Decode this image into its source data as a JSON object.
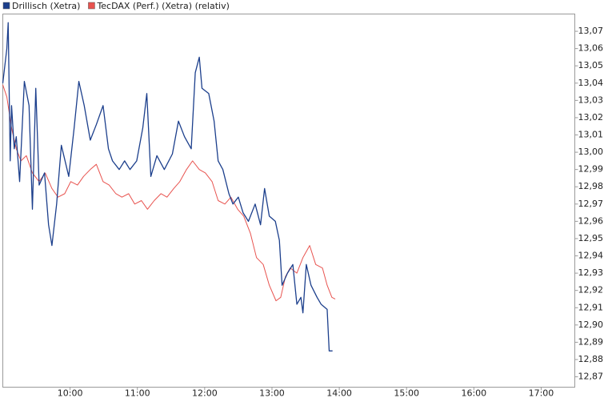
{
  "chart_data": {
    "type": "line",
    "xlim": [
      9,
      17.5
    ],
    "xticks": [
      {
        "value": 10,
        "label": "10:00"
      },
      {
        "value": 11,
        "label": "11:00"
      },
      {
        "value": 12,
        "label": "12:00"
      },
      {
        "value": 13,
        "label": "13:00"
      },
      {
        "value": 14,
        "label": "14:00"
      },
      {
        "value": 15,
        "label": "15:00"
      },
      {
        "value": 16,
        "label": "16:00"
      },
      {
        "value": 17,
        "label": "17:00"
      }
    ],
    "ylim": [
      12.864,
      13.08
    ],
    "yticks": [
      {
        "value": 12.87,
        "label": "12,87"
      },
      {
        "value": 12.88,
        "label": "12,88"
      },
      {
        "value": 12.89,
        "label": "12,89"
      },
      {
        "value": 12.9,
        "label": "12,90"
      },
      {
        "value": 12.91,
        "label": "12,91"
      },
      {
        "value": 12.92,
        "label": "12,92"
      },
      {
        "value": 12.93,
        "label": "12,93"
      },
      {
        "value": 12.94,
        "label": "12,94"
      },
      {
        "value": 12.95,
        "label": "12,95"
      },
      {
        "value": 12.96,
        "label": "12,96"
      },
      {
        "value": 12.97,
        "label": "12,97"
      },
      {
        "value": 12.98,
        "label": "12,98"
      },
      {
        "value": 12.99,
        "label": "12,99"
      },
      {
        "value": 13.0,
        "label": "13,00"
      },
      {
        "value": 13.01,
        "label": "13,01"
      },
      {
        "value": 13.02,
        "label": "13,02"
      },
      {
        "value": 13.03,
        "label": "13,03"
      },
      {
        "value": 13.04,
        "label": "13,04"
      },
      {
        "value": 13.05,
        "label": "13,05"
      },
      {
        "value": 13.06,
        "label": "13,06"
      },
      {
        "value": 13.07,
        "label": "13,07"
      }
    ],
    "grid": false,
    "series": [
      {
        "name": "Drillisch (Xetra)",
        "color": "#1c3f8c",
        "x": [
          9.0,
          9.06,
          9.08,
          9.11,
          9.13,
          9.17,
          9.2,
          9.25,
          9.32,
          9.39,
          9.44,
          9.49,
          9.54,
          9.62,
          9.68,
          9.73,
          9.8,
          9.87,
          9.98,
          10.06,
          10.13,
          10.21,
          10.3,
          10.39,
          10.49,
          10.57,
          10.63,
          10.73,
          10.81,
          10.89,
          10.99,
          11.08,
          11.14,
          11.2,
          11.29,
          11.4,
          11.52,
          11.61,
          11.7,
          11.8,
          11.86,
          11.92,
          11.96,
          12.06,
          12.14,
          12.2,
          12.27,
          12.36,
          12.42,
          12.5,
          12.57,
          12.65,
          12.75,
          12.83,
          12.89,
          12.96,
          13.05,
          13.11,
          13.15,
          13.23,
          13.31,
          13.37,
          13.43,
          13.46,
          13.51,
          13.58,
          13.67,
          13.73,
          13.82,
          13.85,
          13.9
        ],
        "values": [
          13.04,
          13.06,
          13.075,
          12.995,
          13.027,
          13.002,
          13.009,
          12.983,
          13.041,
          13.027,
          12.967,
          13.037,
          12.981,
          12.988,
          12.958,
          12.946,
          12.97,
          13.004,
          12.986,
          13.014,
          13.041,
          13.027,
          13.007,
          13.016,
          13.027,
          13.002,
          12.995,
          12.99,
          12.995,
          12.99,
          12.995,
          13.014,
          13.034,
          12.986,
          12.998,
          12.99,
          12.999,
          13.018,
          13.009,
          13.002,
          13.046,
          13.055,
          13.037,
          13.034,
          13.018,
          12.995,
          12.99,
          12.976,
          12.97,
          12.974,
          12.965,
          12.96,
          12.97,
          12.958,
          12.979,
          12.963,
          12.96,
          12.949,
          12.923,
          12.93,
          12.935,
          12.912,
          12.916,
          12.907,
          12.935,
          12.923,
          12.916,
          12.912,
          12.909,
          12.885,
          12.885
        ]
      },
      {
        "name": "TecDAX (Perf.) (Xetra) (relativ)",
        "color": "#e8534f",
        "x": [
          9.0,
          9.06,
          9.13,
          9.2,
          9.27,
          9.35,
          9.44,
          9.54,
          9.63,
          9.73,
          9.82,
          9.92,
          10.01,
          10.11,
          10.2,
          10.3,
          10.39,
          10.49,
          10.58,
          10.68,
          10.77,
          10.87,
          10.96,
          11.06,
          11.15,
          11.25,
          11.35,
          11.44,
          11.54,
          11.63,
          11.73,
          11.82,
          11.92,
          12.01,
          12.11,
          12.2,
          12.3,
          12.39,
          12.49,
          12.58,
          12.68,
          12.77,
          12.87,
          12.96,
          13.06,
          13.13,
          13.2,
          13.27,
          13.37,
          13.46,
          13.56,
          13.65,
          13.75,
          13.82,
          13.89,
          13.94
        ],
        "values": [
          13.039,
          13.032,
          13.014,
          13.002,
          12.995,
          12.998,
          12.988,
          12.983,
          12.988,
          12.979,
          12.974,
          12.976,
          12.983,
          12.981,
          12.986,
          12.99,
          12.993,
          12.983,
          12.981,
          12.976,
          12.974,
          12.976,
          12.97,
          12.972,
          12.967,
          12.972,
          12.976,
          12.974,
          12.979,
          12.983,
          12.99,
          12.995,
          12.99,
          12.988,
          12.983,
          12.972,
          12.97,
          12.974,
          12.967,
          12.963,
          12.953,
          12.939,
          12.935,
          12.923,
          12.914,
          12.916,
          12.928,
          12.933,
          12.93,
          12.939,
          12.946,
          12.935,
          12.933,
          12.923,
          12.916,
          12.915
        ]
      }
    ]
  }
}
